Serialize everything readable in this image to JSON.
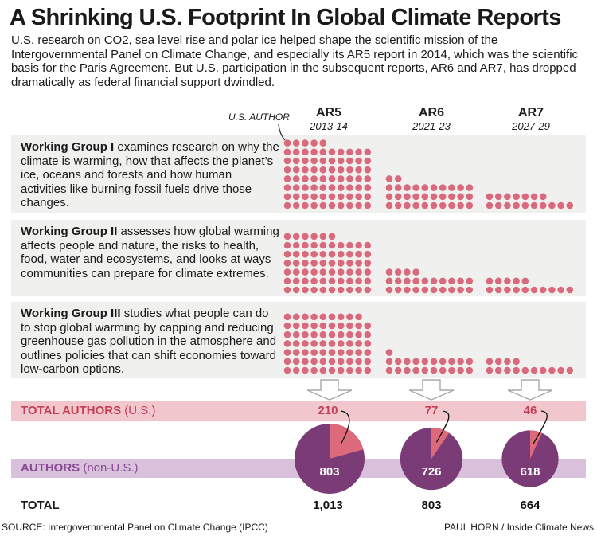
{
  "title": "A Shrinking U.S. Footprint In Global Climate Reports",
  "intro": "U.S. research on CO2, sea level rise and polar ice helped shape the scientific mission of the Intergovernmental Panel on Climate Change, and especially its AR5 report in 2014, which was the scientific basis for the Paris Agreement. But U.S. participation in the subsequent reports, AR6 and AR7, has dropped dramatically as federal financial support dwindled.",
  "us_author_label": "U.S. AUTHOR",
  "groups": [
    {
      "name": "Working Group I",
      "desc": " examines research on why the climate is warming, how that affects the planet’s ice, oceans and forests and how human activities like burning fossil fuels drive those changes."
    },
    {
      "name": "Working Group II",
      "desc": " assesses how global warming affects people and nature, the risks to health, food, water and ecosystems, and looks at ways communities can prepare for climate extremes."
    },
    {
      "name": "Working Group III",
      "desc": " studies what people can do to stop global warming by capping and reducing greenhouse gas pollution in the atmosphere and outlines policies that can shift economies toward low-carbon options."
    }
  ],
  "row_labels": {
    "us_main": "TOTAL AUTHORS",
    "us_sub": " (U.S.)",
    "nonus_main": "AUTHORS",
    "nonus_sub": " (non-U.S.)",
    "total": "TOTAL"
  },
  "source": "SOURCE: Intergovernmental Panel on Climate Change (IPCC)",
  "credit": "PAUL HORN / Inside Climate News",
  "colors": {
    "dot": "#d9697d",
    "us_slice": "#dc6a7a",
    "nonus_slice": "#7b3b77",
    "arrow": "#a8a8a8",
    "band": "#f0f0ee"
  },
  "chart_data": {
    "type": "pie",
    "reports": [
      {
        "name": "AR5",
        "years": "2013-14",
        "wg_us_authors": [
          75,
          66,
          69
        ],
        "us_authors": "210",
        "non_us_authors": "803",
        "total": "1,013",
        "us": 210,
        "non_us": 803
      },
      {
        "name": "AR6",
        "years": "2021-23",
        "wg_us_authors": [
          32,
          24,
          21
        ],
        "us_authors": "77",
        "non_us_authors": "726",
        "total": "803",
        "us": 77,
        "non_us": 726
      },
      {
        "name": "AR7",
        "years": "2027-29",
        "wg_us_authors": [
          17,
          15,
          14
        ],
        "us_authors": "46",
        "non_us_authors": "618",
        "total": "664",
        "us": 46,
        "non_us": 618
      }
    ]
  }
}
